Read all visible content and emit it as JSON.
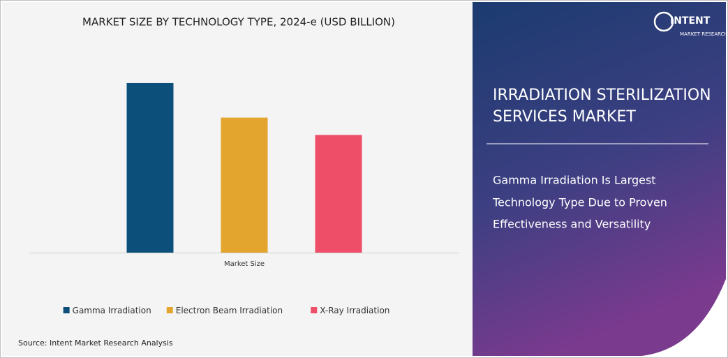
{
  "chart_data": {
    "type": "bar",
    "title": "MARKET SIZE BY TECHNOLOGY TYPE, 2024-e (USD BILLION)",
    "categories": [
      "Market Size"
    ],
    "series": [
      {
        "name": "Gamma Irradiation",
        "color": "#0b4f7a",
        "values": [
          4.9
        ]
      },
      {
        "name": "Electron Beam Irradiation",
        "color": "#e3a52d",
        "values": [
          3.9
        ]
      },
      {
        "name": "X-Ray Irradiation",
        "color": "#ef4e68",
        "values": [
          3.4
        ]
      }
    ],
    "ylim": [
      0,
      5
    ],
    "legend": "bottom"
  },
  "source": "Source: Intent Market Research Analysis",
  "logo": {
    "name": "INTENT",
    "tagline": "MARKET RESEARCH"
  },
  "panel": {
    "title": [
      "IRRADIATION STERILIZATION",
      "SERVICES MARKET"
    ],
    "subtitle": [
      "Gamma Irradiation Is Largest",
      "Technology Type Due to Proven",
      "Effectiveness and Versatility"
    ]
  }
}
